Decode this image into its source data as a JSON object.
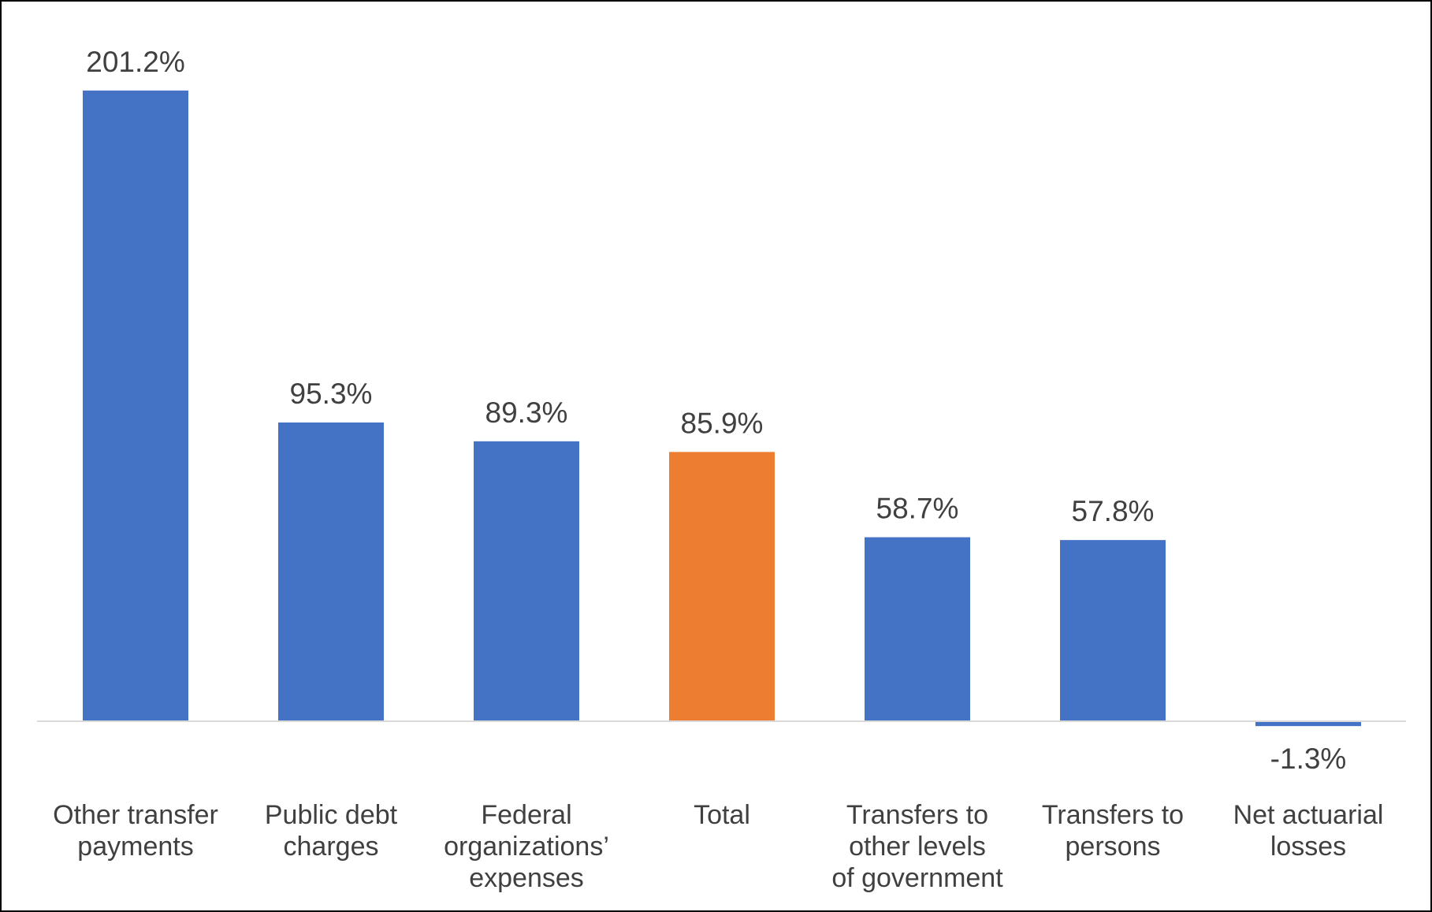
{
  "chart_data": {
    "type": "bar",
    "categories": [
      [
        "Other transfer",
        "payments"
      ],
      [
        "Public debt",
        "charges"
      ],
      [
        "Federal",
        "organizations’",
        "expenses"
      ],
      [
        "Total"
      ],
      [
        "Transfers to",
        "other levels",
        "of government"
      ],
      [
        "Transfers to",
        "persons"
      ],
      [
        "Net actuarial",
        "losses"
      ]
    ],
    "values": [
      201.2,
      95.3,
      89.3,
      85.9,
      58.7,
      57.8,
      -1.3
    ],
    "value_labels": [
      "201.2%",
      "95.3%",
      "89.3%",
      "85.9%",
      "58.7%",
      "57.8%",
      "-1.3%"
    ],
    "unit": "%",
    "bar_colors": [
      "#4472C4",
      "#4472C4",
      "#4472C4",
      "#ED7D31",
      "#4472C4",
      "#4472C4",
      "#4472C4"
    ],
    "axis_color": "#D9D9D9",
    "text_color": "#404040",
    "title": "",
    "xlabel": "",
    "ylabel": "",
    "ylim": [
      -20,
      230
    ],
    "grid": false,
    "legend": "none"
  }
}
